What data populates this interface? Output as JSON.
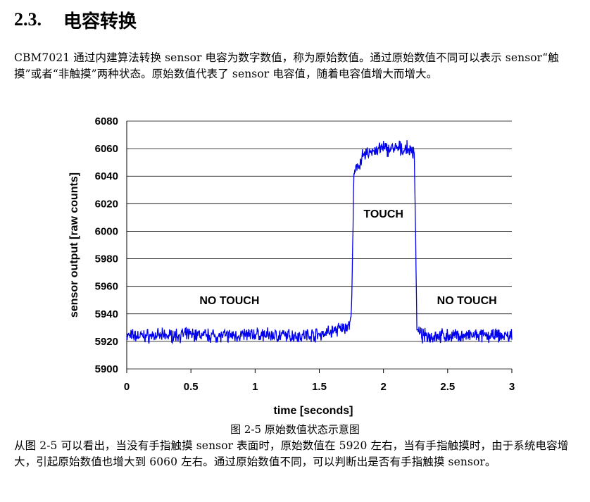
{
  "section": {
    "number": "2.3.",
    "title": "电容转换"
  },
  "paragraphs": {
    "intro": "CBM7021 通过内建算法转换 sensor 电容为数字数值，称为原始数值。通过原始数值不同可以表示 sensor“触摸”或者“非触摸”两种状态。原始数值代表了 sensor 电容值，随着电容值增大而增大。",
    "explanation": "从图 2-5 可以看出，当没有手指触摸 sensor 表面时，原始数值在 5920 左右，当有手指触摸时，由于系统电容增大，引起原始数值也增大到 6060 左右。通过原始数值不同，可以判断出是否有手指触摸 sensor。"
  },
  "figure": {
    "caption": "图 2-5 原始数值状态示意图"
  },
  "chart_data": {
    "type": "line",
    "xlabel": "time [seconds]",
    "ylabel": "sensor output [raw counts]",
    "xlim": [
      0,
      3
    ],
    "ylim": [
      5900,
      6080
    ],
    "xticks": [
      0,
      0.5,
      1,
      1.5,
      2,
      2.5,
      3
    ],
    "xtick_labels": [
      "0",
      "0.5",
      "1",
      "1.5",
      "2",
      "2.5",
      "3"
    ],
    "yticks": [
      5900,
      5920,
      5940,
      5960,
      5980,
      6000,
      6020,
      6040,
      6060,
      6080
    ],
    "grid": "horizontal",
    "line_color": "#0000ee",
    "series": [
      {
        "x": [
          0,
          0.25,
          0.5,
          0.75,
          1.0,
          1.25,
          1.5,
          1.7,
          1.74,
          1.75,
          1.77,
          1.8,
          1.85,
          1.9,
          2.0,
          2.1,
          2.2,
          2.24,
          2.25,
          2.26,
          2.3,
          2.5,
          2.75,
          3.0
        ],
        "y": [
          5924,
          5924,
          5925,
          5924,
          5925,
          5924,
          5925,
          5930,
          5933,
          5940,
          6040,
          6048,
          6055,
          6058,
          6060,
          6060,
          6059,
          6058,
          6000,
          5928,
          5924,
          5924,
          5924,
          5924
        ]
      }
    ],
    "annotations": [
      {
        "text": "NO TOUCH",
        "x": 0.8,
        "y": 5947
      },
      {
        "text": "TOUCH",
        "x": 2.0,
        "y": 6010
      },
      {
        "text": "NO TOUCH",
        "x": 2.65,
        "y": 5947
      }
    ]
  }
}
